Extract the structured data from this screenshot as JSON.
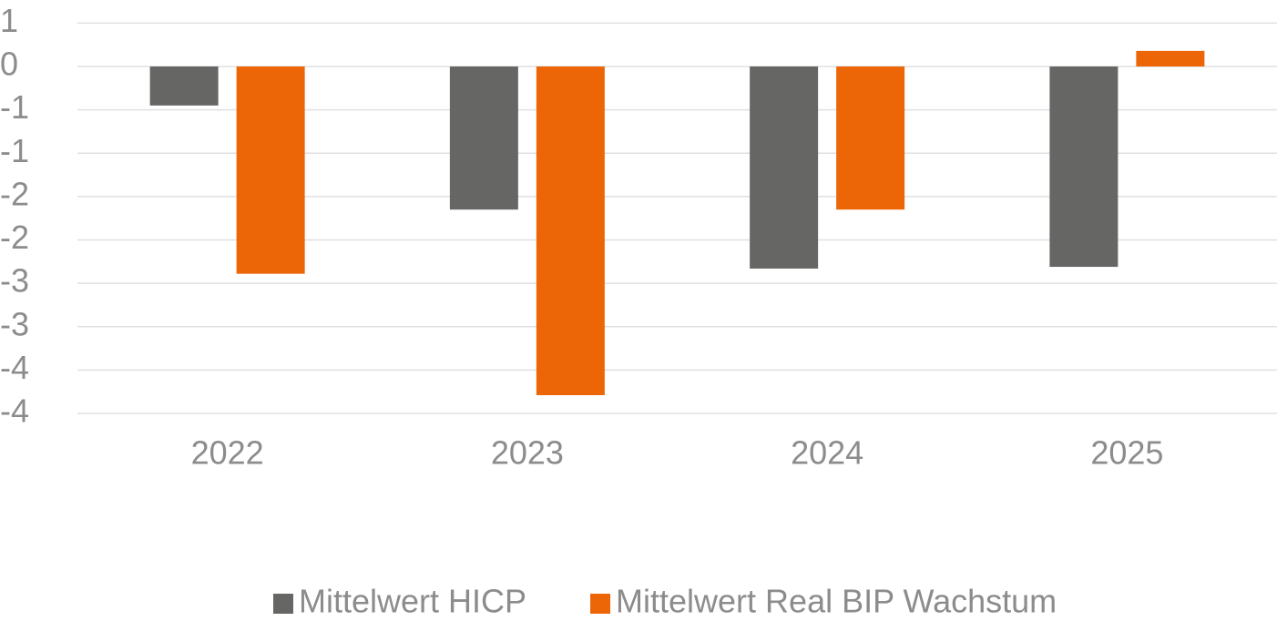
{
  "chart_data": {
    "type": "bar",
    "categories": [
      "2022",
      "2023",
      "2024",
      "2025"
    ],
    "series": [
      {
        "name": "Mittelwert HICP",
        "color": "#666664",
        "values": [
          -0.45,
          -1.65,
          -2.33,
          -2.31
        ]
      },
      {
        "name": "Mittelwert Real BIP Wachstum",
        "color": "#ec6608",
        "values": [
          -2.39,
          -3.79,
          -1.65,
          0.18
        ]
      }
    ],
    "ylim": [
      -4,
      0.5
    ],
    "yticks": [
      {
        "value": 0.5,
        "label": "1"
      },
      0,
      {
        "value": -0.5,
        "label": "-1"
      },
      -1,
      {
        "value": -1.5,
        "label": "-2"
      },
      -2,
      {
        "value": -2.5,
        "label": "-3"
      },
      -3,
      {
        "value": -3.5,
        "label": "-4"
      },
      -4
    ],
    "grid": true,
    "legend": "bottom"
  }
}
